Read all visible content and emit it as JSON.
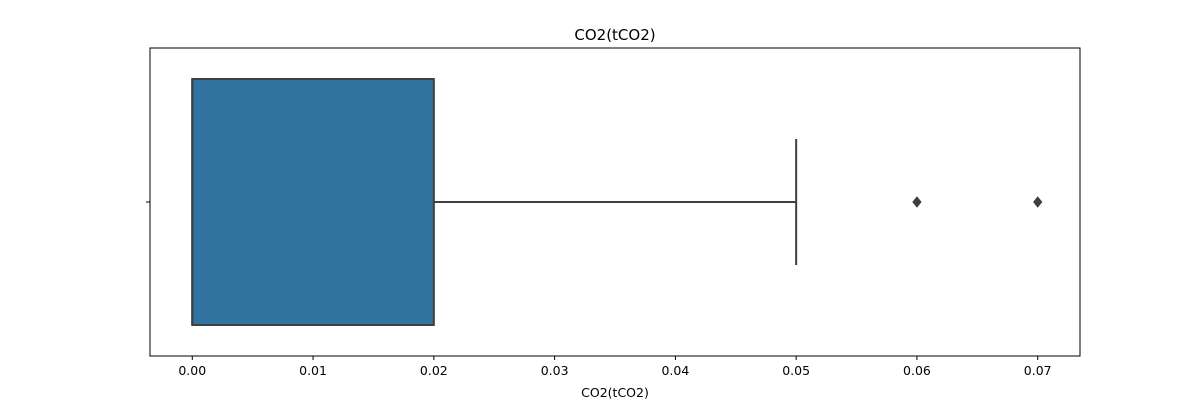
{
  "chart_data": {
    "type": "boxplot",
    "orientation": "horizontal",
    "title": "CO2(tCO2)",
    "xlabel": "CO2(tCO2)",
    "ylabel": "",
    "xlim": [
      -0.0035,
      0.0735
    ],
    "x_ticks": [
      0.0,
      0.01,
      0.02,
      0.03,
      0.04,
      0.05,
      0.06,
      0.07
    ],
    "x_tick_labels": [
      "0.00",
      "0.01",
      "0.02",
      "0.03",
      "0.04",
      "0.05",
      "0.06",
      "0.07"
    ],
    "box": {
      "whisker_low": 0.0,
      "q1": 0.0,
      "median": 0.0,
      "q3": 0.02,
      "whisker_high": 0.05
    },
    "outliers": [
      0.06,
      0.07
    ],
    "colors": {
      "box_fill": "#3274a1",
      "box_edge": "#3f3f3f",
      "outlier": "#3f3f3f"
    },
    "grid": false,
    "legend": "none"
  }
}
